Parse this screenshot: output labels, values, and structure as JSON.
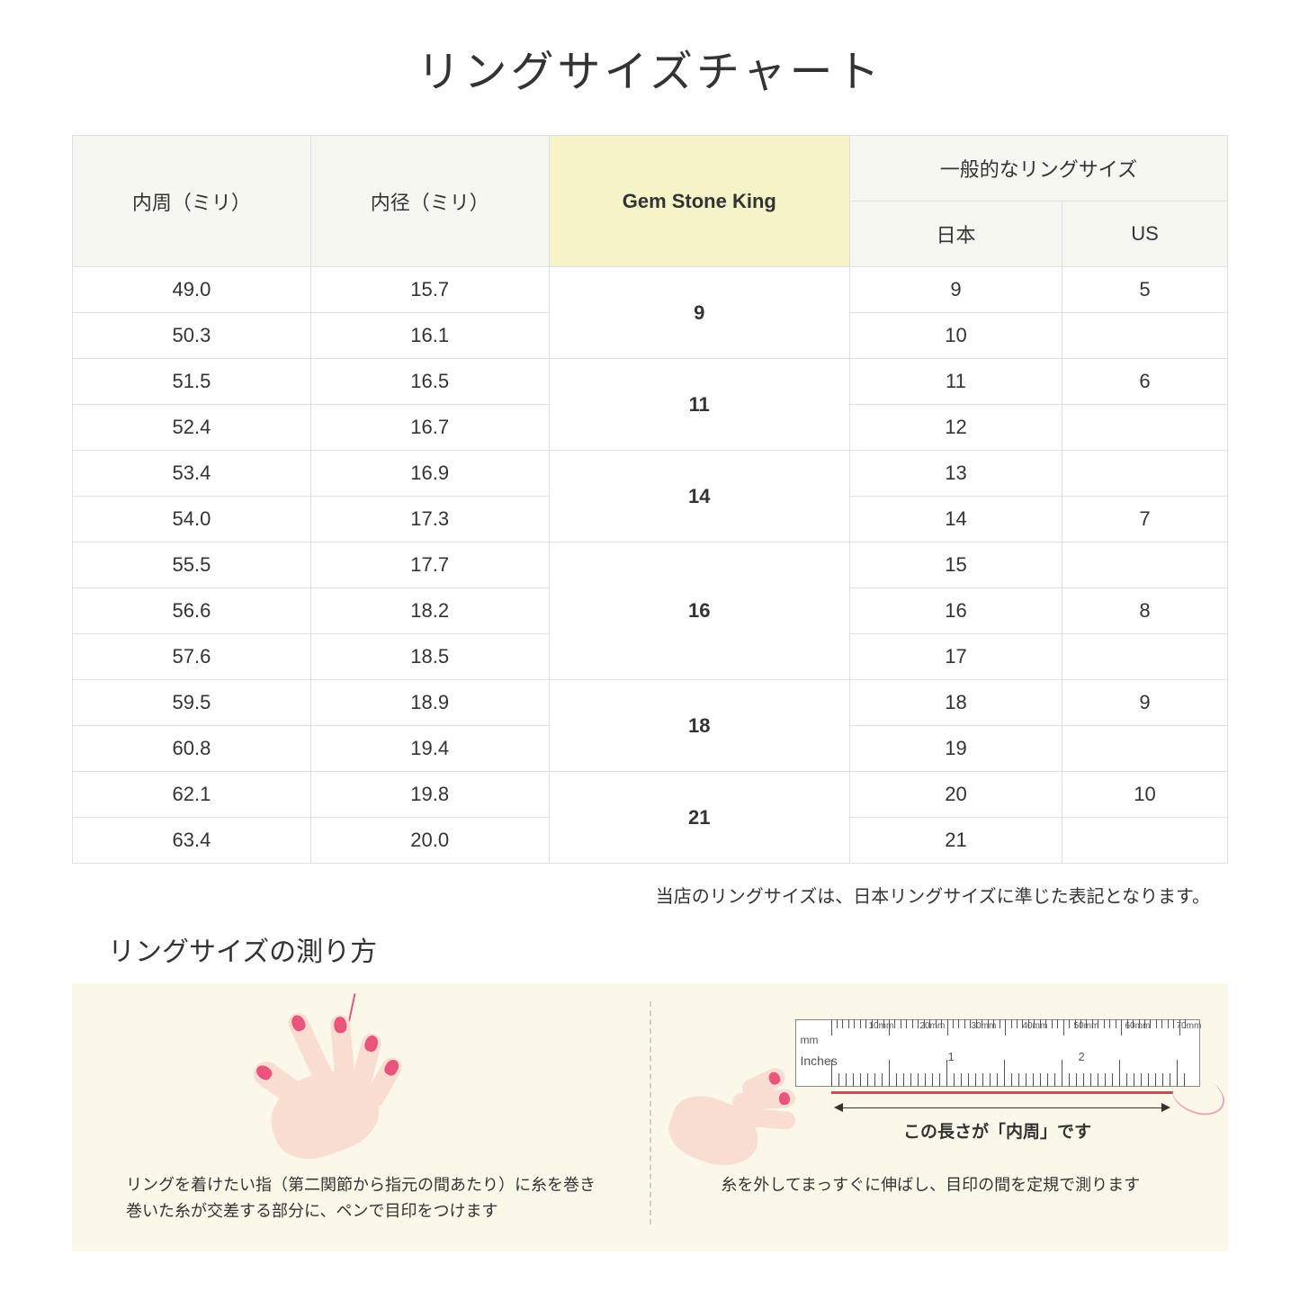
{
  "title": "リングサイズチャート",
  "table": {
    "headers": {
      "col1": "内周（ミリ）",
      "col2": "内径（ミリ）",
      "col3": "Gem Stone King",
      "col4_group": "一般的なリングサイズ",
      "col4a": "日本",
      "col4b": "US"
    },
    "groups": [
      {
        "gsk": "9",
        "rows": [
          {
            "c": "49.0",
            "d": "15.7",
            "jp": "9",
            "us": "5"
          },
          {
            "c": "50.3",
            "d": "16.1",
            "jp": "10",
            "us": ""
          }
        ]
      },
      {
        "gsk": "11",
        "rows": [
          {
            "c": "51.5",
            "d": "16.5",
            "jp": "11",
            "us": "6"
          },
          {
            "c": "52.4",
            "d": "16.7",
            "jp": "12",
            "us": ""
          }
        ]
      },
      {
        "gsk": "14",
        "rows": [
          {
            "c": "53.4",
            "d": "16.9",
            "jp": "13",
            "us": ""
          },
          {
            "c": "54.0",
            "d": "17.3",
            "jp": "14",
            "us": "7"
          }
        ]
      },
      {
        "gsk": "16",
        "rows": [
          {
            "c": "55.5",
            "d": "17.7",
            "jp": "15",
            "us": ""
          },
          {
            "c": "56.6",
            "d": "18.2",
            "jp": "16",
            "us": "8"
          },
          {
            "c": "57.6",
            "d": "18.5",
            "jp": "17",
            "us": ""
          }
        ]
      },
      {
        "gsk": "18",
        "rows": [
          {
            "c": "59.5",
            "d": "18.9",
            "jp": "18",
            "us": "9"
          },
          {
            "c": "60.8",
            "d": "19.4",
            "jp": "19",
            "us": ""
          }
        ]
      },
      {
        "gsk": "21",
        "rows": [
          {
            "c": "62.1",
            "d": "19.8",
            "jp": "20",
            "us": "10"
          },
          {
            "c": "63.4",
            "d": "20.0",
            "jp": "21",
            "us": ""
          }
        ]
      }
    ]
  },
  "note": "当店のリングサイズは、日本リングサイズに準じた表記となります。",
  "subtitle": "リングサイズの測り方",
  "instructions": {
    "left": "リングを着けたい指（第二関節から指元の間あたり）に糸を巻き\n巻いた糸が交差する部分に、ペンで目印をつけます",
    "right_label": "この長さが「内周」です",
    "right": "糸を外してまっすぐに伸ばし、目印の間を定規で測ります",
    "ruler_mm": "mm",
    "ruler_in": "Inches",
    "mm_marks": [
      "10mm",
      "20mm",
      "30mm",
      "40mm",
      "50mm",
      "60mm",
      "70mm"
    ],
    "in_marks": [
      "1",
      "2"
    ]
  },
  "colors": {
    "header_bg": "#f7f7f2",
    "highlight_bg": "#f5f3c8",
    "border": "#e0e0e0",
    "instruction_bg": "#fbf8ea",
    "skin": "#f8ddd0",
    "nail": "#e8547c",
    "thread": "#d8445f"
  }
}
